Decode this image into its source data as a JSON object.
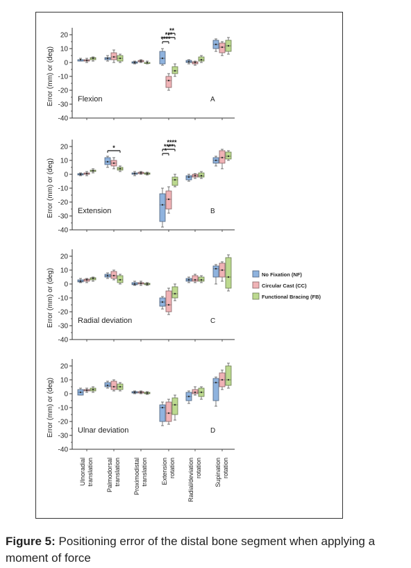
{
  "caption": {
    "label": "Figure 5:",
    "text": " Positioning error of the distal bone segment when applying a moment of force"
  },
  "colors": {
    "NF": "#8fb3de",
    "CC": "#f0b3b6",
    "FB": "#bcd98f"
  },
  "chart_data": {
    "type": "box",
    "ylabel": "Error (mm) or (deg)",
    "ylim": [
      -40,
      25
    ],
    "yticks": [
      20,
      10,
      0,
      -10,
      -20,
      -30,
      -40
    ],
    "categories": [
      "Ulnoradial translation",
      "Palmodorsal translation",
      "Proximodistal translation",
      "Extension rotation",
      "Radial/deviation rotation",
      "Supination rotation"
    ],
    "category_lines": [
      [
        "Ulnoradial",
        "translation"
      ],
      [
        "Palmodorsal",
        "translation"
      ],
      [
        "Proximodistal",
        "translation"
      ],
      [
        "Extension",
        "rotation"
      ],
      [
        "Radial/deviation",
        "rotation"
      ],
      [
        "Supination",
        "rotation"
      ]
    ],
    "legend": [
      {
        "key": "NF",
        "label": "No Fixation (NF)"
      },
      {
        "key": "CC",
        "label": "Circular Cast (CC)"
      },
      {
        "key": "FB",
        "label": "Functional Bracing (FB)"
      }
    ],
    "legend_position": "right",
    "panels": [
      {
        "name": "Flexion",
        "letter": "A",
        "boxes": [
          [
            [
              1,
              1,
              2,
              2,
              3
            ],
            [
              0,
              1,
              1.5,
              2,
              3
            ],
            [
              1,
              2,
              3,
              3.5,
              4
            ]
          ],
          [
            [
              1,
              2,
              3,
              3.5,
              5
            ],
            [
              0,
              2,
              4,
              7,
              9
            ],
            [
              0,
              1,
              3,
              5,
              6
            ]
          ],
          [
            [
              -1,
              -0.5,
              0,
              0.5,
              1
            ],
            [
              0,
              0.5,
              1,
              1.5,
              2
            ],
            [
              -1,
              -0.5,
              0,
              0,
              1
            ]
          ],
          [
            [
              -2,
              -1,
              3,
              8,
              10
            ],
            [
              -20,
              -18,
              -13,
              -10,
              -8
            ],
            [
              -10,
              -8,
              -6,
              -3,
              -1
            ]
          ],
          [
            [
              -1,
              0,
              0.5,
              1.5,
              2
            ],
            [
              -2,
              -1,
              0,
              0.5,
              1
            ],
            [
              0,
              1,
              2,
              4,
              5
            ]
          ],
          [
            [
              8,
              10,
              13,
              16,
              17
            ],
            [
              5,
              7,
              11,
              14,
              15
            ],
            [
              6,
              8,
              12,
              16,
              18
            ]
          ]
        ],
        "significance": [
          {
            "x": 3,
            "s": 0,
            "e": 1,
            "stars": "****"
          },
          {
            "x": 3,
            "s": 0,
            "e": 2,
            "stars": "***"
          },
          {
            "x": 3,
            "s": 1,
            "e": 2,
            "stars": "**"
          }
        ]
      },
      {
        "name": "Extension",
        "letter": "B",
        "boxes": [
          [
            [
              -1,
              -0.5,
              0,
              0.5,
              1
            ],
            [
              -1,
              0,
              0.5,
              1,
              2
            ],
            [
              1,
              2,
              2.5,
              3,
              4
            ]
          ],
          [
            [
              5,
              7,
              9,
              12,
              13
            ],
            [
              4,
              6,
              8,
              10,
              12
            ],
            [
              2,
              3,
              4,
              5,
              6
            ]
          ],
          [
            [
              -1,
              0,
              0.5,
              1,
              2
            ],
            [
              0,
              0.5,
              1,
              1.5,
              2
            ],
            [
              -0.5,
              0,
              0.5,
              1,
              1.5
            ]
          ],
          [
            [
              -38,
              -34,
              -22,
              -14,
              -10
            ],
            [
              -28,
              -25,
              -18,
              -12,
              -9
            ],
            [
              -9,
              -8,
              -4,
              -2,
              0
            ]
          ],
          [
            [
              -5,
              -4,
              -2,
              -1,
              0
            ],
            [
              -3,
              -2,
              -1,
              0,
              0.5
            ],
            [
              -3,
              -2,
              -1,
              1,
              2
            ]
          ],
          [
            [
              6,
              8,
              10,
              12,
              13
            ],
            [
              4,
              8,
              12,
              17,
              18
            ],
            [
              10,
              11,
              13,
              16,
              17
            ]
          ]
        ],
        "significance": [
          {
            "x": 1,
            "s": 0,
            "e": 2,
            "stars": "*"
          },
          {
            "x": 3,
            "s": 0,
            "e": 1,
            "stars": "*"
          },
          {
            "x": 3,
            "s": 0,
            "e": 2,
            "stars": "****"
          },
          {
            "x": 3,
            "s": 1,
            "e": 2,
            "stars": "****"
          }
        ]
      },
      {
        "name": "Radial deviation",
        "letter": "C",
        "boxes": [
          [
            [
              1,
              1.5,
              2,
              3,
              4
            ],
            [
              1,
              2,
              3,
              3.5,
              4
            ],
            [
              2,
              3,
              4,
              4.5,
              5
            ]
          ],
          [
            [
              4,
              5,
              6,
              7,
              8
            ],
            [
              3,
              4,
              6,
              9,
              10
            ],
            [
              0,
              1,
              3,
              6,
              7
            ]
          ],
          [
            [
              -1,
              -0.5,
              0,
              1,
              2
            ],
            [
              -1,
              0,
              0.5,
              1,
              2
            ],
            [
              -1,
              -0.5,
              0,
              0.5,
              1
            ]
          ],
          [
            [
              -18,
              -16,
              -13,
              -10,
              -9
            ],
            [
              -22,
              -20,
              -15,
              -5,
              -3
            ],
            [
              -12,
              -10,
              -7,
              -2,
              0
            ]
          ],
          [
            [
              1,
              2,
              3,
              4,
              5
            ],
            [
              1,
              2,
              3,
              6,
              7
            ],
            [
              1,
              2,
              3,
              5,
              6
            ]
          ],
          [
            [
              0,
              5,
              11,
              13,
              14
            ],
            [
              2,
              5,
              10,
              15,
              16
            ],
            [
              -5,
              -3,
              5,
              19,
              21
            ]
          ]
        ],
        "significance": []
      },
      {
        "name": "Ulnar deviation",
        "letter": "D",
        "boxes": [
          [
            [
              -1,
              -1,
              1,
              3,
              4
            ],
            [
              1,
              2,
              2.5,
              3,
              4
            ],
            [
              1,
              2,
              3,
              4,
              5
            ]
          ],
          [
            [
              4,
              5,
              6,
              8,
              9
            ],
            [
              2,
              3,
              5,
              9,
              10
            ],
            [
              2,
              3,
              5,
              7,
              8
            ]
          ],
          [
            [
              0,
              0.5,
              1,
              1.5,
              2
            ],
            [
              0,
              0.5,
              1,
              1.5,
              2
            ],
            [
              -0.5,
              0,
              0.5,
              1,
              1.5
            ]
          ],
          [
            [
              -23,
              -20,
              -10,
              -8,
              -6
            ],
            [
              -22,
              -20,
              -14,
              -6,
              -4
            ],
            [
              -19,
              -15,
              -8,
              -3,
              -1
            ]
          ],
          [
            [
              -7,
              -5,
              -2,
              1,
              2
            ],
            [
              -1,
              0,
              1,
              3,
              5
            ],
            [
              -4,
              -2,
              1,
              4,
              5
            ]
          ],
          [
            [
              -9,
              -5,
              8,
              11,
              12
            ],
            [
              3,
              5,
              10,
              15,
              17
            ],
            [
              4,
              6,
              10,
              20,
              22
            ]
          ]
        ],
        "significance": []
      }
    ]
  }
}
